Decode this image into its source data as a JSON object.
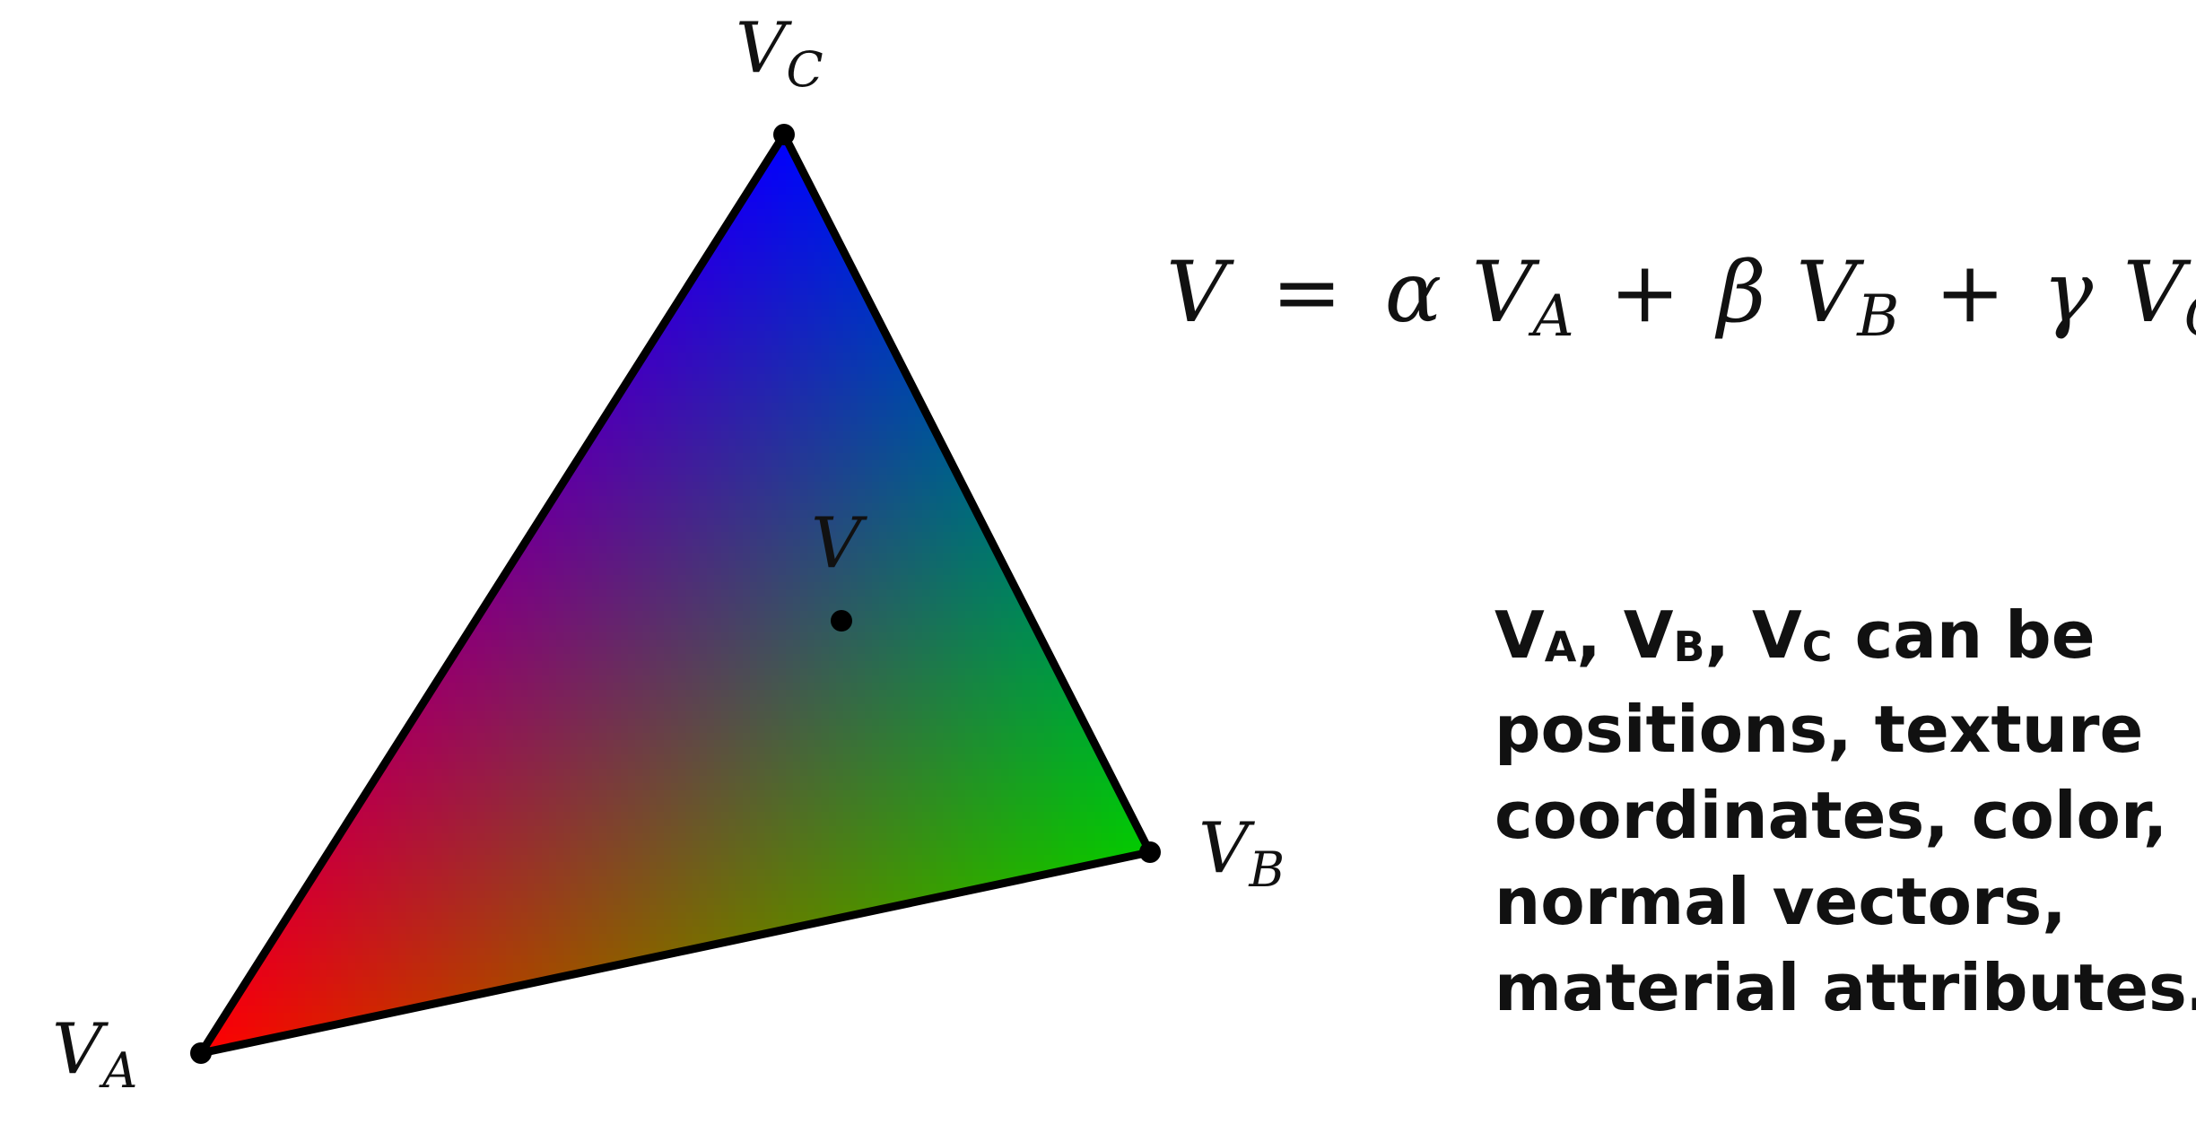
{
  "colors": {
    "vertex_a": "#ff0000",
    "vertex_b": "#00cc00",
    "vertex_c": "#0000ff",
    "edge": "#000000",
    "point": "#000000"
  },
  "labels": {
    "vertex_a": {
      "base": "V",
      "sub": "A"
    },
    "vertex_b": {
      "base": "V",
      "sub": "B"
    },
    "vertex_c": {
      "base": "V",
      "sub": "C"
    },
    "interior_point": "V"
  },
  "formula": {
    "lhs": "V",
    "equals": "=",
    "alpha": "α",
    "beta": "β",
    "gamma": "γ",
    "plus": "+",
    "v": "V",
    "sub_a": "A",
    "sub_b": "B",
    "sub_c": "C"
  },
  "caption": {
    "v": "V",
    "sub_a": "A",
    "sub_b": "B",
    "sub_c": "C",
    "sep": ",",
    "line1_tail": "can be",
    "line2": "positions, texture",
    "line3": "coordinates, color,",
    "line4": "normal vectors,",
    "line5": "material attributes…"
  }
}
